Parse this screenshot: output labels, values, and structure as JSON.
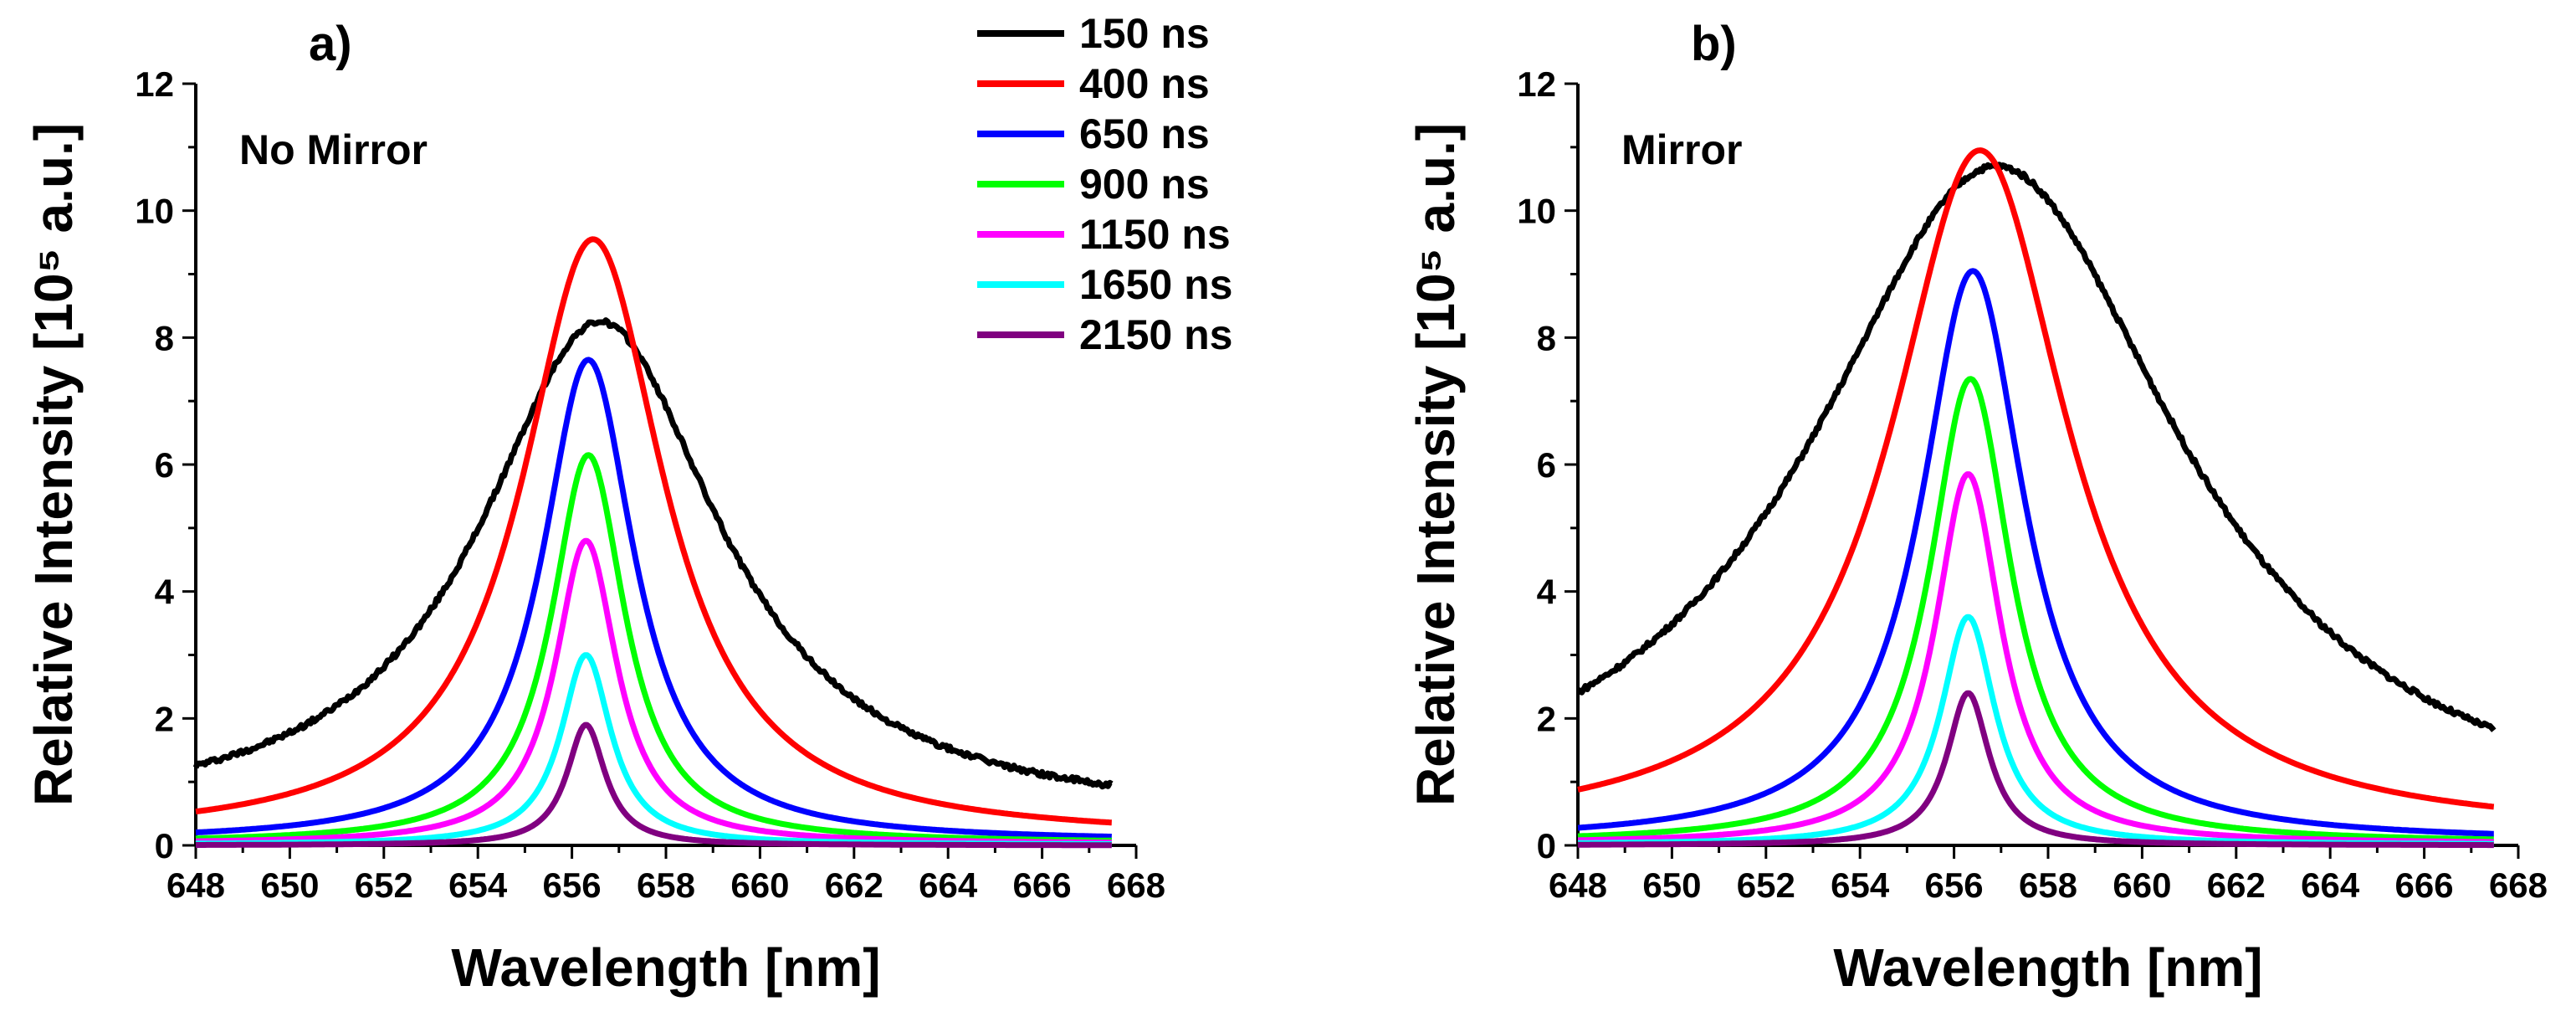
{
  "chart_data": [
    {
      "type": "line",
      "panel_label": "a)",
      "annotation": "No Mirror",
      "xlabel": "Wavelength [nm]",
      "ylabel": "Relative Intensity [10⁵ a.u.]",
      "xlim": [
        648,
        668
      ],
      "ylim": [
        0,
        12
      ],
      "xticks": [
        "648",
        "650",
        "652",
        "654",
        "656",
        "658",
        "660",
        "662",
        "664",
        "666",
        "668"
      ],
      "yticks": [
        "0",
        "2",
        "4",
        "6",
        "8",
        "10",
        "12"
      ],
      "x_range": [
        648,
        667.5
      ],
      "series": [
        {
          "name": "150 ns",
          "color": "#000000",
          "peak": 8.25,
          "center": 656.6,
          "gamma": 3.1,
          "baseline": 0.35
        },
        {
          "name": "400 ns",
          "color": "#ff0000",
          "peak": 9.55,
          "center": 656.45,
          "gamma": 1.85,
          "baseline": 0.1
        },
        {
          "name": "650 ns",
          "color": "#0000ff",
          "peak": 7.65,
          "center": 656.35,
          "gamma": 1.2,
          "baseline": 0.05
        },
        {
          "name": "900 ns",
          "color": "#00ff00",
          "peak": 6.15,
          "center": 656.35,
          "gamma": 0.95,
          "baseline": 0.03
        },
        {
          "name": "1150 ns",
          "color": "#ff00ff",
          "peak": 4.8,
          "center": 656.3,
          "gamma": 0.8,
          "baseline": 0.02
        },
        {
          "name": "1650 ns",
          "color": "#00ffff",
          "peak": 3.0,
          "center": 656.3,
          "gamma": 0.65,
          "baseline": 0.01
        },
        {
          "name": "2150 ns",
          "color": "#800080",
          "peak": 1.9,
          "center": 656.3,
          "gamma": 0.5,
          "baseline": 0.0
        }
      ]
    },
    {
      "type": "line",
      "panel_label": "b)",
      "annotation": "Mirror",
      "xlabel": "Wavelength [nm]",
      "ylabel": "Relative Intensity [10⁵ a.u.]",
      "xlim": [
        648,
        668
      ],
      "ylim": [
        0,
        12
      ],
      "xticks": [
        "648",
        "650",
        "652",
        "654",
        "656",
        "658",
        "660",
        "662",
        "664",
        "666",
        "668"
      ],
      "yticks": [
        "0",
        "2",
        "4",
        "6",
        "8",
        "10",
        "12"
      ],
      "x_range": [
        648,
        667.5
      ],
      "series": [
        {
          "name": "150 ns",
          "color": "#000000",
          "peak": 10.7,
          "center": 656.9,
          "gamma": 4.8,
          "baseline": 0.0
        },
        {
          "name": "400 ns",
          "color": "#ff0000",
          "peak": 10.95,
          "center": 656.55,
          "gamma": 2.3,
          "baseline": 0.15
        },
        {
          "name": "650 ns",
          "color": "#0000ff",
          "peak": 9.05,
          "center": 656.4,
          "gamma": 1.35,
          "baseline": 0.05
        },
        {
          "name": "900 ns",
          "color": "#00ff00",
          "peak": 7.35,
          "center": 656.35,
          "gamma": 1.05,
          "baseline": 0.03
        },
        {
          "name": "1150 ns",
          "color": "#ff00ff",
          "peak": 5.85,
          "center": 656.3,
          "gamma": 0.85,
          "baseline": 0.02
        },
        {
          "name": "1650 ns",
          "color": "#00ffff",
          "peak": 3.6,
          "center": 656.3,
          "gamma": 0.7,
          "baseline": 0.01
        },
        {
          "name": "2150 ns",
          "color": "#800080",
          "peak": 2.4,
          "center": 656.3,
          "gamma": 0.55,
          "baseline": 0.0
        }
      ]
    }
  ],
  "legend": {
    "entries": [
      {
        "label": "150 ns",
        "color": "#000000"
      },
      {
        "label": "400 ns",
        "color": "#ff0000"
      },
      {
        "label": "650 ns",
        "color": "#0000ff"
      },
      {
        "label": "900 ns",
        "color": "#00ff00"
      },
      {
        "label": "1150 ns",
        "color": "#ff00ff"
      },
      {
        "label": "1650 ns",
        "color": "#00ffff"
      },
      {
        "label": "2150 ns",
        "color": "#800080"
      }
    ]
  }
}
